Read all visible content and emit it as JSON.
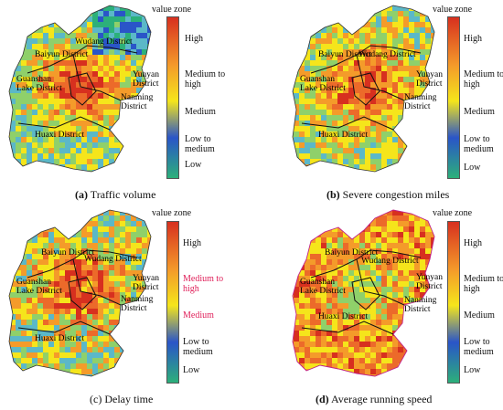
{
  "legend": {
    "title": "value zone",
    "levels": [
      "High",
      "Medium to high",
      "Medium",
      "Low to medium",
      "Low"
    ]
  },
  "districts": {
    "baiyun": "Baiyun District",
    "wudang": "Wudang District",
    "yunyan": "Yunyan District",
    "nanming": "Nanming District",
    "guanshan": "Guanshan Lake District",
    "huaxi": "Huaxi District"
  },
  "panels": [
    {
      "letter": "(a)",
      "caption": "Traffic volume"
    },
    {
      "letter": "(b)",
      "caption": "Severe congestion miles"
    },
    {
      "letter": "(c)",
      "caption": "Delay time"
    },
    {
      "letter": "(d)",
      "caption": "Average running speed"
    }
  ],
  "colors": {
    "high": "#d7301f",
    "medium_high": "#f49b2a",
    "medium": "#f5e51b",
    "low_medium": "#2a55c8",
    "low": "#2cb07a"
  }
}
